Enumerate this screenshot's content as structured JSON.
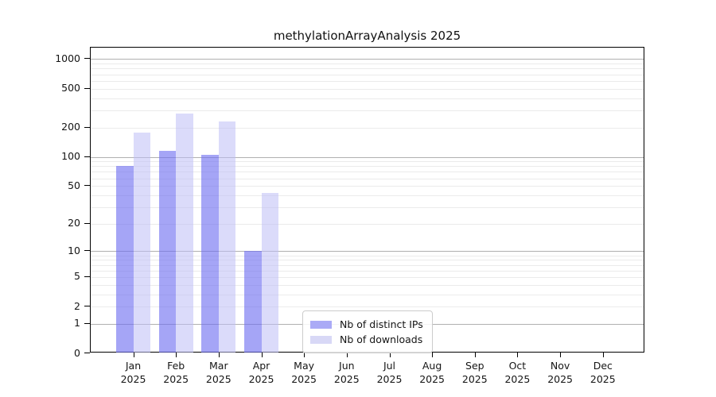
{
  "title": "methylationArrayAnalysis 2025",
  "chart_data": {
    "type": "bar",
    "title": "methylationArrayAnalysis 2025",
    "x_months": [
      "Jan",
      "Feb",
      "Mar",
      "Apr",
      "May",
      "Jun",
      "Jul",
      "Aug",
      "Sep",
      "Oct",
      "Nov",
      "Dec"
    ],
    "x_year": "2025",
    "categories": [
      "Jan 2025",
      "Feb 2025",
      "Mar 2025",
      "Apr 2025",
      "May 2025",
      "Jun 2025",
      "Jul 2025",
      "Aug 2025",
      "Sep 2025",
      "Oct 2025",
      "Nov 2025",
      "Dec 2025"
    ],
    "series": [
      {
        "name": "Nb of distinct IPs",
        "color": "#aaaaf6",
        "fill": "rgba(110,110,240,0.62)",
        "values": [
          80,
          115,
          104,
          10,
          null,
          null,
          null,
          null,
          null,
          null,
          null,
          null
        ]
      },
      {
        "name": "Nb of downloads",
        "color": "#d8d8f6",
        "fill": "rgba(190,190,245,0.55)",
        "values": [
          177,
          279,
          232,
          42,
          null,
          null,
          null,
          null,
          null,
          null,
          null,
          null
        ]
      }
    ],
    "y_scale": "log10(value+1)",
    "y_ticks": [
      0,
      1,
      2,
      5,
      10,
      20,
      50,
      100,
      200,
      500,
      1000
    ],
    "y_major_gridlines": [
      1,
      10,
      100,
      1000
    ],
    "y_minor_gridlines": [
      2,
      3,
      4,
      5,
      6,
      7,
      8,
      9,
      20,
      30,
      40,
      50,
      60,
      70,
      80,
      90,
      200,
      300,
      400,
      500,
      600,
      700,
      800,
      900
    ],
    "ylim": [
      0,
      1300
    ],
    "grid": true,
    "legend": {
      "position": "lower center",
      "items": [
        "Nb of distinct IPs",
        "Nb of downloads"
      ]
    }
  }
}
